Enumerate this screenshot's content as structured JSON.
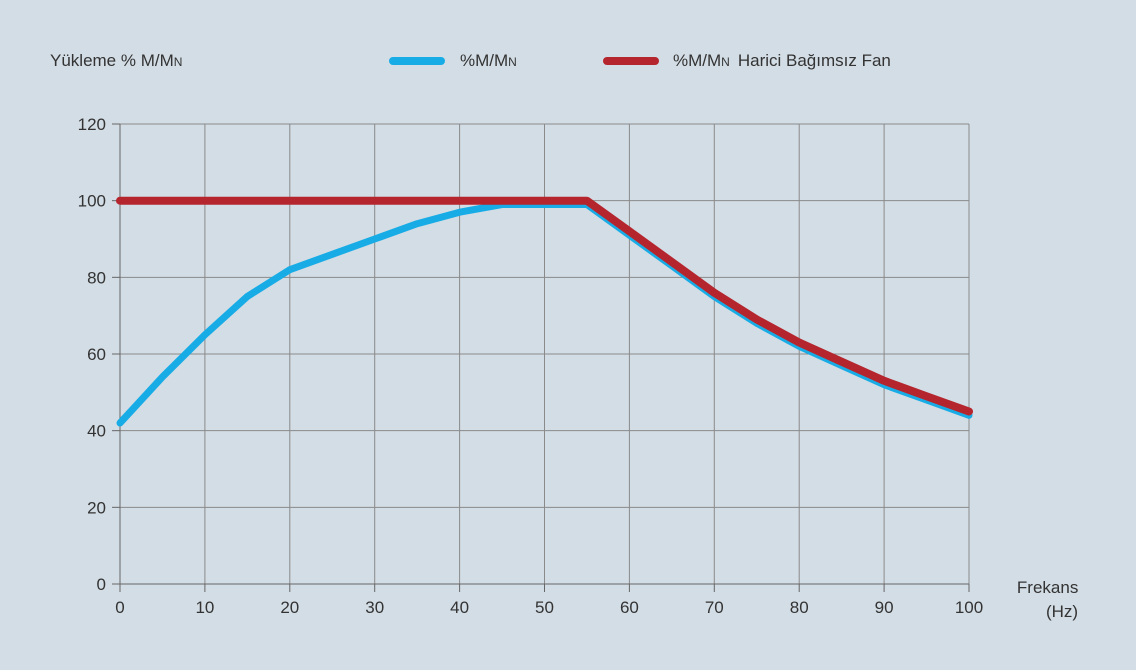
{
  "chart_data": {
    "type": "line",
    "ylabel_prefix": "Yükleme % M/M",
    "ylabel_sub": "N",
    "xlabel_line1": "Frekans",
    "xlabel_line2": "(Hz)",
    "xlim": [
      0,
      100
    ],
    "ylim": [
      0,
      120
    ],
    "xticks": [
      0,
      10,
      20,
      30,
      40,
      50,
      60,
      70,
      80,
      90,
      100
    ],
    "yticks": [
      0,
      20,
      40,
      60,
      80,
      100,
      120
    ],
    "grid": true,
    "legend_position": "top",
    "series": [
      {
        "name_prefix": "%M/M",
        "name_sub": "N",
        "name_suffix": "",
        "color": "#18ace6",
        "x": [
          0,
          5,
          10,
          15,
          20,
          25,
          30,
          35,
          40,
          45,
          50,
          55,
          60,
          65,
          70,
          75,
          80,
          85,
          90,
          95,
          100
        ],
        "y": [
          42,
          54,
          65,
          75,
          82,
          86,
          90,
          94,
          97,
          99,
          99,
          99,
          91,
          83,
          75,
          68,
          62,
          57,
          52,
          48,
          44
        ]
      },
      {
        "name_prefix": "%M/M",
        "name_sub": "N",
        "name_suffix": "Harici Bağımsız Fan",
        "color": "#b5252e",
        "x": [
          0,
          10,
          20,
          30,
          40,
          50,
          55,
          60,
          65,
          70,
          75,
          80,
          85,
          90,
          95,
          100
        ],
        "y": [
          100,
          100,
          100,
          100,
          100,
          100,
          100,
          92,
          84,
          76,
          69,
          63,
          58,
          53,
          49,
          45
        ]
      }
    ]
  }
}
